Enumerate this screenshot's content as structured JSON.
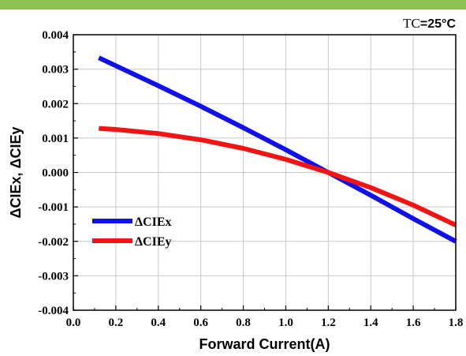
{
  "header": {
    "bar_color": "#8cc152"
  },
  "condition": {
    "prefix": "TC",
    "value": "=25°C"
  },
  "chart_data": {
    "type": "line",
    "xlabel": "Forward Current(A)",
    "ylabel": "ΔCIEx, ΔCIEy",
    "xlim": [
      0.0,
      1.8
    ],
    "ylim": [
      -0.004,
      0.004
    ],
    "xticks": [
      "0.0",
      "0.2",
      "0.4",
      "0.6",
      "0.8",
      "1.0",
      "1.2",
      "1.4",
      "1.6",
      "1.8"
    ],
    "yticks": [
      "0.004",
      "0.003",
      "0.002",
      "0.001",
      "0.000",
      "-0.001",
      "-0.002",
      "-0.003",
      "-0.004"
    ],
    "grid": true,
    "legend_position": "bottom-left",
    "series": [
      {
        "name": "ΔCIEx",
        "color": "#1010e8",
        "x": [
          0.12,
          0.2,
          0.4,
          0.6,
          0.8,
          1.0,
          1.2,
          1.4,
          1.6,
          1.8
        ],
        "y": [
          0.00333,
          0.0031,
          0.00252,
          0.00192,
          0.0013,
          0.00066,
          0.0,
          -0.00066,
          -0.00134,
          -0.002
        ]
      },
      {
        "name": "ΔCIEy",
        "color": "#f01414",
        "x": [
          0.12,
          0.2,
          0.4,
          0.6,
          0.8,
          1.0,
          1.2,
          1.4,
          1.6,
          1.8
        ],
        "y": [
          0.00128,
          0.00125,
          0.00113,
          0.00095,
          0.0007,
          0.00038,
          0.0,
          -0.00044,
          -0.00095,
          -0.00153
        ]
      }
    ]
  }
}
